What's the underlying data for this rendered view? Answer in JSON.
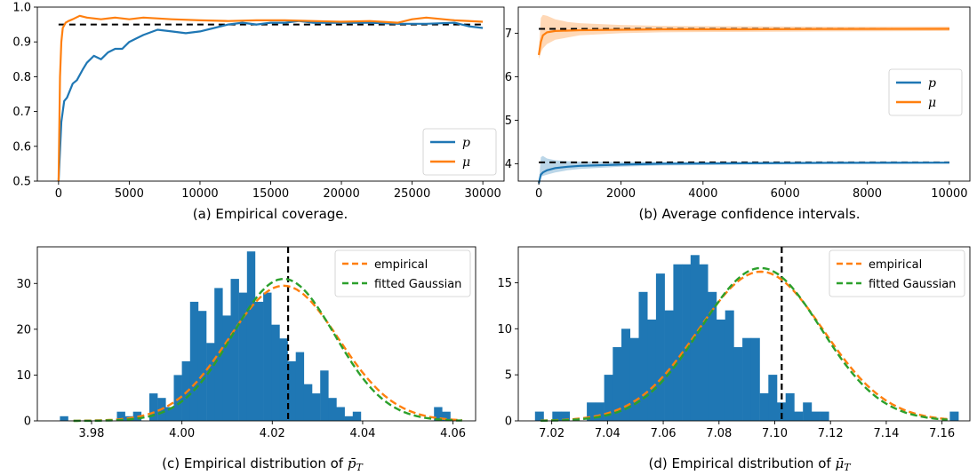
{
  "colors": {
    "blue": "#1f77b4",
    "orange": "#ff7f0e",
    "green": "#2ca02c",
    "black": "#000000"
  },
  "chart_data": [
    {
      "id": "a",
      "type": "line",
      "caption": "(a) Empirical coverage.",
      "xlim": [
        -1500,
        31500
      ],
      "ylim": [
        0.5,
        1.0
      ],
      "xticks": [
        0,
        5000,
        10000,
        15000,
        20000,
        25000,
        30000
      ],
      "xticklabels": [
        "0",
        "5000",
        "10000",
        "15000",
        "20000",
        "25000",
        "30000"
      ],
      "yticks": [
        0.5,
        0.6,
        0.7,
        0.8,
        0.9,
        1.0
      ],
      "yticklabels": [
        "0.5",
        "0.6",
        "0.7",
        "0.8",
        "0.9",
        "1.0"
      ],
      "legend": {
        "position": "lower-right",
        "entries": [
          "p",
          "μ"
        ]
      },
      "reference": {
        "y": 0.95,
        "x": [
          0,
          30000
        ]
      },
      "series": [
        {
          "name": "p",
          "color": "blue",
          "x": [
            0,
            200,
            400,
            600,
            800,
            1000,
            1300,
            1700,
            2000,
            2500,
            3000,
            3500,
            4000,
            4500,
            5000,
            5500,
            6000,
            7000,
            8000,
            9000,
            10000,
            11000,
            12000,
            13000,
            14000,
            15000,
            16000,
            17000,
            18000,
            20000,
            22000,
            24000,
            26000,
            28000,
            29000,
            30000
          ],
          "y": [
            0.5,
            0.67,
            0.73,
            0.74,
            0.76,
            0.78,
            0.79,
            0.82,
            0.84,
            0.86,
            0.85,
            0.87,
            0.88,
            0.88,
            0.9,
            0.91,
            0.92,
            0.935,
            0.93,
            0.925,
            0.93,
            0.94,
            0.95,
            0.955,
            0.95,
            0.955,
            0.955,
            0.96,
            0.955,
            0.955,
            0.955,
            0.952,
            0.952,
            0.955,
            0.945,
            0.94
          ]
        },
        {
          "name": "μ",
          "color": "orange",
          "x": [
            0,
            100,
            200,
            300,
            500,
            700,
            1000,
            1500,
            2000,
            3000,
            4000,
            5000,
            6000,
            8000,
            10000,
            12000,
            14000,
            16000,
            18000,
            20000,
            22000,
            24000,
            25000,
            26000,
            28000,
            30000
          ],
          "y": [
            0.5,
            0.8,
            0.9,
            0.94,
            0.955,
            0.96,
            0.965,
            0.975,
            0.97,
            0.965,
            0.97,
            0.965,
            0.97,
            0.965,
            0.962,
            0.96,
            0.962,
            0.962,
            0.96,
            0.958,
            0.96,
            0.955,
            0.965,
            0.97,
            0.962,
            0.958
          ]
        }
      ]
    },
    {
      "id": "b",
      "type": "line",
      "caption": "(b) Average confidence intervals.",
      "xlim": [
        -500,
        10500
      ],
      "ylim": [
        3.6,
        7.6
      ],
      "xticks": [
        0,
        2000,
        4000,
        6000,
        8000,
        10000
      ],
      "xticklabels": [
        "0",
        "2000",
        "4000",
        "6000",
        "8000",
        "10000"
      ],
      "yticks": [
        4,
        5,
        6,
        7
      ],
      "yticklabels": [
        "4",
        "5",
        "6",
        "7"
      ],
      "legend": {
        "position": "center-right",
        "entries": [
          "p",
          "μ"
        ]
      },
      "references": [
        {
          "y": 4.03,
          "x": [
            0,
            10000
          ]
        },
        {
          "y": 7.1,
          "x": [
            0,
            10000
          ]
        }
      ],
      "series": [
        {
          "name": "p",
          "color": "blue",
          "x": [
            0,
            50,
            100,
            200,
            400,
            700,
            1000,
            2000,
            3000,
            5000,
            7000,
            10000
          ],
          "y": [
            3.55,
            3.75,
            3.8,
            3.85,
            3.9,
            3.93,
            3.95,
            3.98,
            4.0,
            4.01,
            4.02,
            4.025
          ],
          "lower": [
            3.55,
            3.7,
            3.72,
            3.75,
            3.8,
            3.85,
            3.88,
            3.93,
            3.96,
            3.98,
            3.99,
            4.0
          ],
          "upper": [
            3.55,
            4.15,
            4.18,
            4.12,
            4.08,
            4.06,
            4.05,
            4.04,
            4.04,
            4.04,
            4.04,
            4.04
          ]
        },
        {
          "name": "μ",
          "color": "orange",
          "x": [
            0,
            50,
            100,
            200,
            400,
            700,
            1000,
            2000,
            3000,
            5000,
            7000,
            10000
          ],
          "y": [
            6.5,
            6.8,
            6.95,
            7.02,
            7.05,
            7.06,
            7.07,
            7.08,
            7.09,
            7.09,
            7.095,
            7.1
          ],
          "lower": [
            6.4,
            6.55,
            6.65,
            6.75,
            6.85,
            6.9,
            6.95,
            7.0,
            7.02,
            7.03,
            7.04,
            7.05
          ],
          "upper": [
            6.6,
            7.35,
            7.42,
            7.4,
            7.32,
            7.26,
            7.23,
            7.19,
            7.17,
            7.16,
            7.15,
            7.15
          ]
        }
      ]
    },
    {
      "id": "c",
      "type": "bar",
      "caption_text": "(c) Empirical distribution of ",
      "caption_symbol": "p̄",
      "caption_sub": "T",
      "xlim": [
        3.968,
        4.065
      ],
      "ylim": [
        0,
        38
      ],
      "xticks": [
        3.98,
        4.0,
        4.02,
        4.04,
        4.06
      ],
      "xticklabels": [
        "3.98",
        "4.00",
        "4.02",
        "4.04",
        "4.06"
      ],
      "yticks": [
        0,
        10,
        20,
        30
      ],
      "yticklabels": [
        "0",
        "10",
        "20",
        "30"
      ],
      "legend": {
        "position": "top-right",
        "entries": [
          "empirical",
          "fitted Gaussian"
        ]
      },
      "vline": 4.0235,
      "bins": {
        "start": 3.973,
        "width": 0.0018,
        "values": [
          1,
          0,
          0,
          0,
          0,
          0,
          0,
          2,
          1,
          2,
          0,
          6,
          5,
          3,
          10,
          13,
          26,
          24,
          17,
          29,
          23,
          31,
          28,
          37,
          26,
          28,
          21,
          18,
          13,
          15,
          8,
          6,
          11,
          5,
          3,
          1,
          2,
          0,
          0,
          0,
          0,
          0,
          0,
          0,
          0,
          0,
          3,
          2
        ]
      },
      "curves": [
        {
          "name": "empirical",
          "style": "dashed",
          "color": "orange",
          "mean": 4.0225,
          "sd": 0.0122,
          "amp": 29.5,
          "x": [
            3.976,
            4.062
          ]
        },
        {
          "name": "fitted Gaussian",
          "style": "dashed",
          "color": "green",
          "mean": 4.0225,
          "sd": 0.0113,
          "amp": 31,
          "x": [
            3.976,
            4.062
          ]
        }
      ]
    },
    {
      "id": "d",
      "type": "bar",
      "caption_text": "(d) Empirical distribution of ",
      "caption_symbol": "μ̄",
      "caption_sub": "T",
      "xlim": [
        7.008,
        7.17
      ],
      "ylim": [
        0,
        18.9
      ],
      "xticks": [
        7.02,
        7.04,
        7.06,
        7.08,
        7.1,
        7.12,
        7.14,
        7.16
      ],
      "xticklabels": [
        "7.02",
        "7.04",
        "7.06",
        "7.08",
        "7.10",
        "7.12",
        "7.14",
        "7.16"
      ],
      "yticks": [
        0,
        5,
        10,
        15
      ],
      "yticklabels": [
        "0",
        "5",
        "10",
        "15"
      ],
      "legend": {
        "position": "top-right",
        "entries": [
          "empirical",
          "fitted Gaussian"
        ]
      },
      "vline": 7.1025,
      "bins": {
        "start": 7.014,
        "width": 0.0031,
        "values": [
          1,
          0,
          1,
          1,
          0,
          0,
          2,
          2,
          5,
          8,
          10,
          9,
          14,
          11,
          16,
          12,
          17,
          17,
          18,
          17,
          14,
          11,
          12,
          8,
          9,
          9,
          3,
          5,
          2,
          3,
          1,
          2,
          1,
          1,
          0,
          0,
          0,
          0,
          0,
          0,
          0,
          0,
          0,
          0,
          0,
          0,
          0,
          0,
          1
        ]
      },
      "curves": [
        {
          "name": "empirical",
          "style": "dashed",
          "color": "orange",
          "mean": 7.095,
          "sd": 0.0225,
          "amp": 16.2,
          "x": [
            7.016,
            7.162
          ]
        },
        {
          "name": "fitted Gaussian",
          "style": "dashed",
          "color": "green",
          "mean": 7.095,
          "sd": 0.0215,
          "amp": 16.6,
          "x": [
            7.016,
            7.162
          ]
        }
      ]
    }
  ]
}
